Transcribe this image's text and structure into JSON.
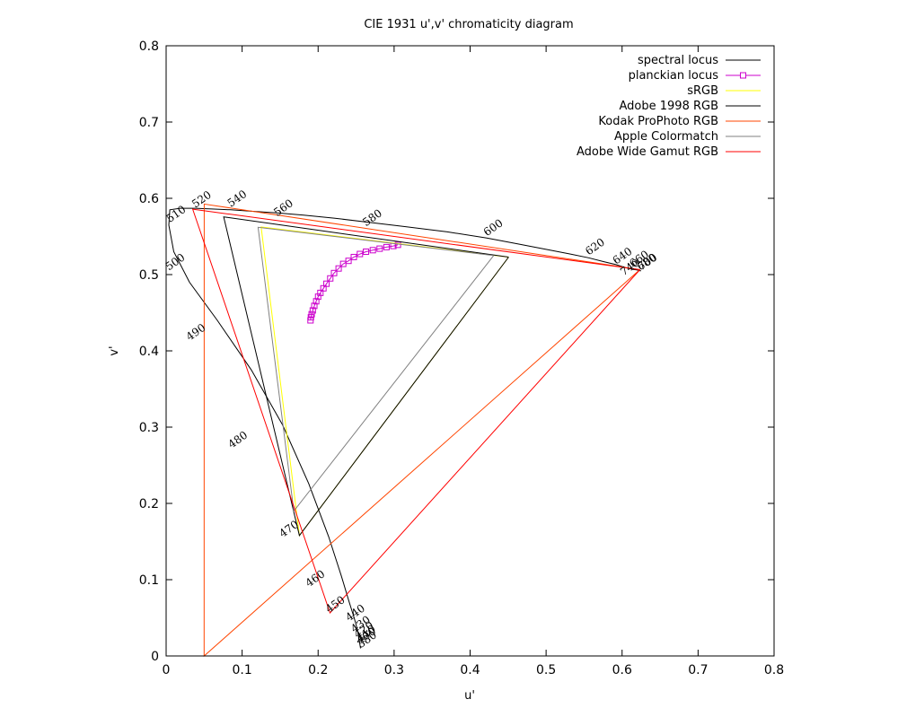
{
  "chart_data": {
    "type": "line",
    "title": "CIE 1931 u',v' chromaticity diagram",
    "xlabel": "u'",
    "ylabel": "v'",
    "xlim": [
      0,
      0.8
    ],
    "ylim": [
      0,
      0.8
    ],
    "xticks": [
      "0",
      "0.1",
      "0.2",
      "0.3",
      "0.4",
      "0.5",
      "0.6",
      "0.7",
      "0.8"
    ],
    "yticks": [
      "0",
      "0.1",
      "0.2",
      "0.3",
      "0.4",
      "0.5",
      "0.6",
      "0.7",
      "0.8"
    ],
    "grid": false,
    "legend_position": "top-right",
    "series": [
      {
        "name": "spectral locus",
        "color": "#000000",
        "kind": "line",
        "x": [
          0.2558,
          0.255,
          0.2545,
          0.2536,
          0.2516,
          0.2475,
          0.2405,
          0.2305,
          0.214,
          0.1877,
          0.1532,
          0.1122,
          0.0673,
          0.0307,
          0.01,
          0.0036,
          0.0048,
          0.0185,
          0.0383,
          0.06,
          0.085,
          0.114,
          0.146,
          0.181,
          0.221,
          0.263,
          0.314,
          0.37,
          0.422,
          0.464,
          0.5,
          0.532,
          0.556,
          0.576,
          0.592,
          0.605,
          0.614,
          0.62,
          0.624,
          0.625,
          0.624,
          0.623
        ],
        "y": [
          0.01,
          0.015,
          0.018,
          0.024,
          0.035,
          0.05,
          0.072,
          0.105,
          0.156,
          0.226,
          0.303,
          0.375,
          0.44,
          0.49,
          0.53,
          0.565,
          0.585,
          0.587,
          0.587,
          0.586,
          0.585,
          0.583,
          0.581,
          0.578,
          0.574,
          0.569,
          0.563,
          0.556,
          0.548,
          0.54,
          0.533,
          0.527,
          0.522,
          0.517,
          0.513,
          0.509,
          0.507,
          0.506,
          0.505,
          0.505,
          0.505,
          0.505
        ]
      },
      {
        "name": "planckian locus",
        "color": "#cc00cc",
        "kind": "line-points",
        "x": [
          0.19,
          0.1905,
          0.1915,
          0.193,
          0.195,
          0.1975,
          0.2,
          0.203,
          0.207,
          0.211,
          0.216,
          0.221,
          0.227,
          0.233,
          0.24,
          0.247,
          0.255,
          0.263,
          0.272,
          0.281,
          0.29,
          0.299,
          0.305
        ],
        "y": [
          0.44,
          0.444,
          0.448,
          0.453,
          0.459,
          0.465,
          0.471,
          0.476,
          0.482,
          0.488,
          0.495,
          0.502,
          0.508,
          0.514,
          0.518,
          0.523,
          0.527,
          0.53,
          0.532,
          0.534,
          0.536,
          0.5375,
          0.539
        ]
      },
      {
        "name": "sRGB",
        "color": "#ffff00",
        "kind": "line",
        "x": [
          0.4507,
          0.125,
          0.1754,
          0.4507
        ],
        "y": [
          0.5229,
          0.5625,
          0.1579,
          0.5229
        ]
      },
      {
        "name": "Adobe 1998 RGB",
        "color": "#000000",
        "kind": "line",
        "x": [
          0.4507,
          0.0757,
          0.1754,
          0.4507
        ],
        "y": [
          0.5229,
          0.5757,
          0.1579,
          0.5229
        ]
      },
      {
        "name": "Kodak ProPhoto RGB",
        "color": "#ff4500",
        "kind": "line",
        "x": [
          0.6234,
          0.0501,
          0.05,
          0.6234
        ],
        "y": [
          0.5065,
          0.5925,
          0.0,
          0.5065
        ]
      },
      {
        "name": "Apple Colormatch",
        "color": "#808080",
        "kind": "line",
        "x": [
          0.431,
          0.121,
          0.168,
          0.431
        ],
        "y": [
          0.525,
          0.562,
          0.19,
          0.525
        ]
      },
      {
        "name": "Adobe Wide Gamut RGB",
        "color": "#ff0000",
        "kind": "line",
        "x": [
          0.6234,
          0.035,
          0.2157,
          0.6234
        ],
        "y": [
          0.5065,
          0.5858,
          0.0565,
          0.5065
        ]
      }
    ],
    "annotations": [
      {
        "text": "380",
        "x": 0.2558,
        "y": 0.01
      },
      {
        "text": "400",
        "x": 0.255,
        "y": 0.015
      },
      {
        "text": "410",
        "x": 0.2545,
        "y": 0.018
      },
      {
        "text": "420",
        "x": 0.2516,
        "y": 0.023
      },
      {
        "text": "430",
        "x": 0.2475,
        "y": 0.03
      },
      {
        "text": "440",
        "x": 0.2405,
        "y": 0.045
      },
      {
        "text": "450",
        "x": 0.214,
        "y": 0.056
      },
      {
        "text": "460",
        "x": 0.1877,
        "y": 0.09
      },
      {
        "text": "470",
        "x": 0.1532,
        "y": 0.155
      },
      {
        "text": "480",
        "x": 0.086,
        "y": 0.272
      },
      {
        "text": "490",
        "x": 0.0307,
        "y": 0.413
      },
      {
        "text": "500",
        "x": 0.0036,
        "y": 0.505
      },
      {
        "text": "510",
        "x": 0.0048,
        "y": 0.568
      },
      {
        "text": "520",
        "x": 0.0383,
        "y": 0.587
      },
      {
        "text": "540",
        "x": 0.085,
        "y": 0.588
      },
      {
        "text": "560",
        "x": 0.146,
        "y": 0.576
      },
      {
        "text": "580",
        "x": 0.263,
        "y": 0.563
      },
      {
        "text": "600",
        "x": 0.422,
        "y": 0.55
      },
      {
        "text": "620",
        "x": 0.556,
        "y": 0.525
      },
      {
        "text": "640",
        "x": 0.592,
        "y": 0.513
      },
      {
        "text": "660",
        "x": 0.614,
        "y": 0.509
      },
      {
        "text": "680",
        "x": 0.624,
        "y": 0.505
      },
      {
        "text": "700",
        "x": 0.625,
        "y": 0.505
      },
      {
        "text": "740",
        "x": 0.602,
        "y": 0.498
      }
    ]
  }
}
